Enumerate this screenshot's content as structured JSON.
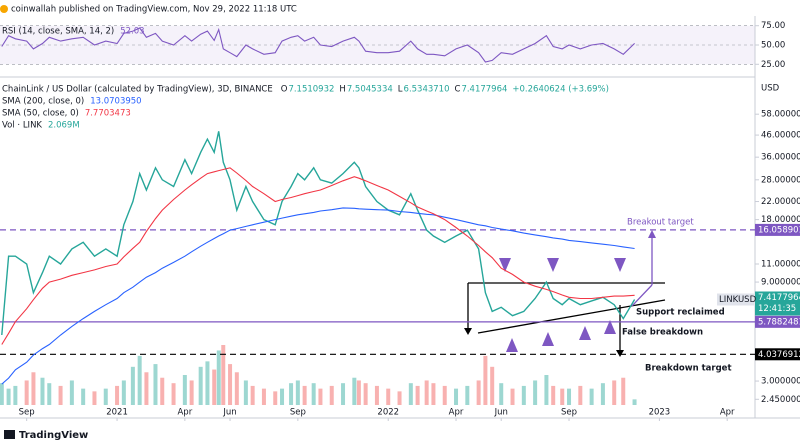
{
  "header": {
    "publisher": "coinwallah published on TradingView.com, Nov 29, 2022 11:18 UTC"
  },
  "footer": {
    "brand": "TradingView"
  },
  "chart_data": [
    {
      "type": "line",
      "x": [
        -5.1,
        -4.8,
        -4.5,
        -4,
        -3.7,
        -3.3,
        -3,
        -2.5,
        -2,
        -1.5,
        -1,
        -0.5,
        0,
        0.3,
        0.7,
        1,
        1.3,
        1.7,
        2,
        2.5,
        3,
        3.3,
        3.7,
        4,
        4.3,
        4.5,
        4.7,
        5,
        5.3,
        5.7,
        6,
        6.5,
        7,
        7.3,
        7.7,
        8,
        8.3,
        8.7,
        9,
        9.5,
        10,
        10.5,
        10.7,
        11,
        11.5,
        12,
        12.5,
        13,
        13.3,
        13.7,
        14,
        14.5,
        15,
        15.5,
        16,
        16.3,
        16.6,
        17,
        17.5,
        18,
        18.5,
        19,
        19.3,
        19.7,
        20,
        20.5,
        21,
        21.5,
        22,
        22.4,
        22.9
      ],
      "xlim": [
        -5.18,
        28.23
      ],
      "ylim": [
        15,
        85
      ],
      "yticks": [
        {
          "value": 75,
          "label": "75.00"
        },
        {
          "value": 50,
          "label": "50.00"
        },
        {
          "value": 25,
          "label": "25.00"
        }
      ],
      "series": [
        {
          "name": "RSI (14, close, SMA, 14, 2)",
          "color": "#7e57c2",
          "values": [
            48,
            62,
            58,
            55,
            45,
            52,
            60,
            55,
            58,
            60,
            50,
            55,
            52,
            65,
            68,
            72,
            60,
            65,
            55,
            50,
            62,
            55,
            64,
            68,
            56,
            70,
            45,
            40,
            35,
            50,
            45,
            38,
            40,
            55,
            60,
            62,
            55,
            60,
            50,
            48,
            55,
            60,
            55,
            42,
            40,
            40,
            42,
            55,
            45,
            38,
            38,
            36,
            45,
            50,
            40,
            28,
            30,
            40,
            38,
            45,
            52,
            62,
            48,
            45,
            50,
            45,
            50,
            52,
            45,
            38,
            52.03
          ]
        }
      ]
    },
    {
      "type": "line",
      "title": "ChainLink / US Dollar (calculated by TradingView), 3D, BINANCE",
      "ohlc": {
        "labels": [
          "O",
          "H",
          "L",
          "C"
        ],
        "values": [
          7.1510932,
          7.5045334,
          6.534371,
          7.4177964
        ],
        "value_labels": [
          "7.1510932",
          "7.5045334",
          "6.5343710",
          "7.4177964"
        ]
      },
      "change": "+0.2640624 (+3.69%)",
      "y_axis_label": "USD",
      "log_scale": true,
      "x": [
        -5.1,
        -4.8,
        -4.5,
        -4,
        -3.7,
        -3.3,
        -3,
        -2.5,
        -2,
        -1.5,
        -1,
        -0.5,
        0,
        0.3,
        0.7,
        1,
        1.3,
        1.7,
        2,
        2.5,
        3,
        3.3,
        3.7,
        4,
        4.3,
        4.5,
        4.7,
        5,
        5.3,
        5.7,
        6,
        6.5,
        7,
        7.3,
        7.7,
        8,
        8.3,
        8.7,
        9,
        9.5,
        10,
        10.5,
        10.7,
        11,
        11.5,
        12,
        12.5,
        13,
        13.3,
        13.7,
        14,
        14.5,
        15,
        15.5,
        16,
        16.3,
        16.6,
        17,
        17.5,
        18,
        18.5,
        19,
        19.3,
        19.7,
        20,
        20.5,
        21,
        21.5,
        22,
        22.4,
        22.9
      ],
      "xlim": [
        -5.18,
        28.23
      ],
      "xticks": [
        {
          "value": -4,
          "label": "Sep"
        },
        {
          "value": 0,
          "label": "2021"
        },
        {
          "value": 3,
          "label": "Apr"
        },
        {
          "value": 5,
          "label": "Jun"
        },
        {
          "value": 8,
          "label": "Sep"
        },
        {
          "value": 12,
          "label": "2022"
        },
        {
          "value": 15,
          "label": "Apr"
        },
        {
          "value": 17,
          "label": "Jun"
        },
        {
          "value": 20,
          "label": "Sep"
        },
        {
          "value": 24,
          "label": "2023"
        },
        {
          "value": 27,
          "label": "Apr"
        }
      ],
      "ylim": [
        2.3,
        82
      ],
      "yticks": [
        {
          "value": 58,
          "label": "58.0000000"
        },
        {
          "value": 46,
          "label": "46.0000000"
        },
        {
          "value": 36,
          "label": "36.0000000"
        },
        {
          "value": 28,
          "label": "28.0000000"
        },
        {
          "value": 22,
          "label": "22.0000000"
        },
        {
          "value": 18,
          "label": "18.0000000"
        },
        {
          "value": 11,
          "label": "11.0000000"
        },
        {
          "value": 9,
          "label": "9.0000000"
        },
        {
          "value": 3,
          "label": "3.0000000"
        },
        {
          "value": 2.45,
          "label": "2.4500000"
        }
      ],
      "series": [
        {
          "name": "LINKUSD",
          "color": "#26a69a",
          "values": [
            5,
            12,
            12,
            11,
            8,
            10,
            12,
            11,
            13,
            14,
            12,
            13,
            12,
            17,
            22,
            30,
            25,
            32,
            28,
            26,
            35,
            30,
            38,
            44,
            38,
            48,
            34,
            28,
            20,
            26,
            22,
            18,
            17,
            22,
            26,
            30,
            28,
            32,
            28,
            27,
            30,
            34,
            32,
            26,
            22,
            20,
            19,
            24,
            20,
            16,
            15,
            14,
            15,
            16,
            13,
            8,
            6.5,
            6.8,
            6.2,
            6.5,
            7.5,
            9,
            7.5,
            7.0,
            7.5,
            7.0,
            7.3,
            7.6,
            7.0,
            6.0,
            7.4177964
          ]
        },
        {
          "name": "SMA (200, close, 0)",
          "color": "#2962ff",
          "value_label": "13.0703950",
          "values": [
            2.9,
            3.1,
            3.4,
            3.7,
            4.0,
            4.3,
            4.5,
            5.0,
            5.5,
            6.0,
            6.5,
            7.0,
            7.5,
            8.0,
            8.5,
            9.0,
            9.5,
            10.0,
            10.5,
            11.2,
            12,
            12.6,
            13.4,
            14,
            14.6,
            15,
            15.4,
            16,
            16.3,
            16.7,
            17,
            17.5,
            18,
            18.3,
            18.7,
            19,
            19.2,
            19.5,
            19.8,
            20.1,
            20.5,
            20.4,
            20.3,
            20.2,
            20.1,
            20,
            19.7,
            19.5,
            19.3,
            19.1,
            19,
            18.5,
            18,
            17.5,
            17,
            16.8,
            16.5,
            16.2,
            15.9,
            15.5,
            15.2,
            14.9,
            14.7,
            14.5,
            14.3,
            14.1,
            13.9,
            13.7,
            13.5,
            13.3,
            13.070395
          ]
        },
        {
          "name": "SMA (50, close, 0)",
          "color": "#f23645",
          "value_label": "7.7703473",
          "values": [
            4.5,
            5.1,
            5.8,
            6.7,
            7.4,
            8.4,
            9,
            9.3,
            9.7,
            10,
            10.3,
            10.7,
            11,
            11.9,
            13.1,
            14,
            15.8,
            18.2,
            20,
            22.5,
            25,
            26.5,
            28.5,
            30,
            30.6,
            31,
            31.4,
            32,
            30.2,
            27.8,
            26,
            24,
            22,
            22.5,
            23,
            23.5,
            24,
            24.6,
            25,
            26.3,
            27.7,
            29,
            28.5,
            27.7,
            26.3,
            25,
            23.3,
            21.7,
            20.7,
            19.8,
            19.2,
            18,
            16.5,
            15,
            13.5,
            12.6,
            11.8,
            10.5,
            9.8,
            9,
            8.6,
            8.3,
            8.1,
            7.8,
            7.6,
            7.5,
            7.5,
            7.6,
            7.7,
            7.7,
            7.7703473
          ]
        }
      ],
      "volume": {
        "name": "Vol · LINK",
        "value_label": "2.069M",
        "color": "#26a69a",
        "values": [
          8,
          6,
          7,
          9,
          12,
          10,
          8,
          7,
          9,
          6,
          5,
          6,
          7,
          9,
          14,
          18,
          12,
          15,
          10,
          8,
          11,
          9,
          14,
          16,
          13,
          20,
          22,
          15,
          12,
          9,
          7,
          6,
          5,
          6,
          8,
          9,
          7,
          8,
          6,
          7,
          8,
          10,
          9,
          8,
          7,
          6,
          5,
          8,
          7,
          9,
          8,
          7,
          6,
          7,
          9,
          18,
          14,
          8,
          6,
          7,
          9,
          11,
          7,
          6,
          6,
          7,
          6,
          8,
          9,
          10,
          2.069
        ]
      },
      "levels": [
        {
          "value": 16.0589014,
          "color": "#7e57c2",
          "dashed": true
        },
        {
          "value": 5.7882481,
          "color": "#7e57c2",
          "dashed": false
        },
        {
          "value": 4.0376912,
          "color": "#000000",
          "dashed": true
        }
      ],
      "countdown": "12:41:35",
      "annotations": [
        "Breakout target",
        "Support reclaimed",
        "False breakdown",
        "Breakdown target"
      ]
    }
  ]
}
